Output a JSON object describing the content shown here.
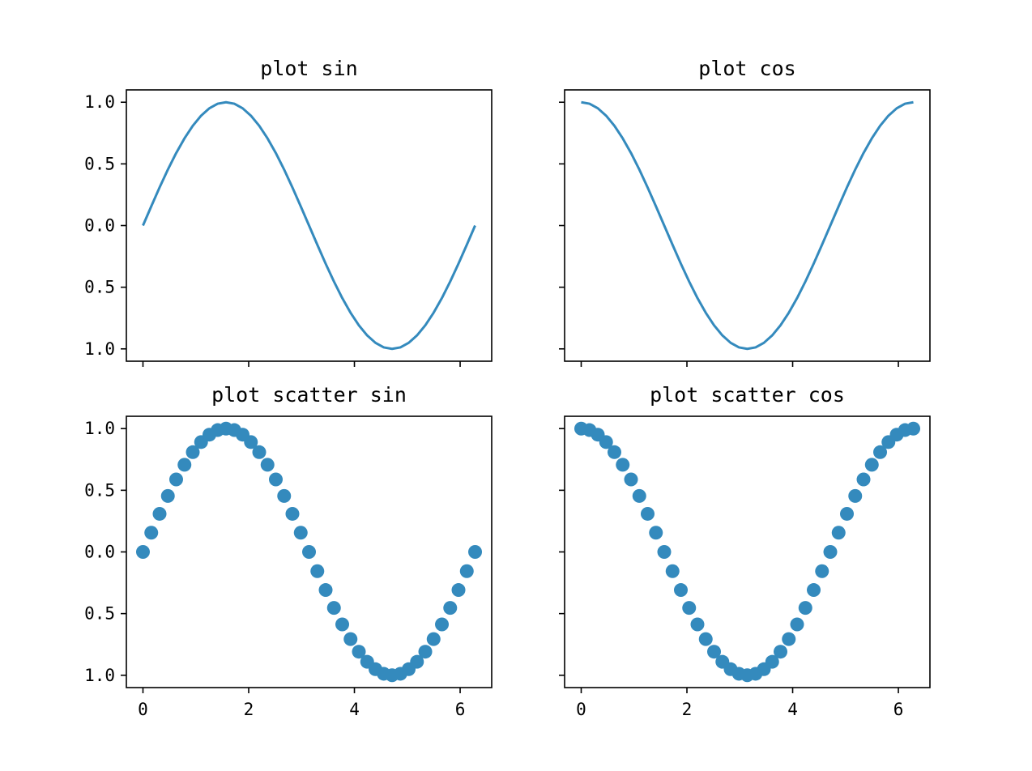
{
  "chart_data": [
    {
      "type": "line",
      "title": "plot sin",
      "xlabel": "",
      "ylabel": "",
      "x_range": [
        0,
        6.283
      ],
      "xlim": [
        -0.314,
        6.597
      ],
      "ylim": [
        -1.1,
        1.1
      ],
      "x_ticks": [
        0,
        2,
        4,
        6
      ],
      "x_tick_labels": [
        "",
        "",
        "",
        ""
      ],
      "y_ticks": [
        1.0,
        0.5,
        0.0,
        -0.5,
        -1.0
      ],
      "y_tick_labels": [
        "1.0",
        "0.5",
        "0.0",
        "0.5",
        "1.0"
      ],
      "grid": false,
      "series": [
        {
          "x": [
            0,
            0.1571,
            0.3142,
            0.4712,
            0.6283,
            0.7854,
            0.9425,
            1.0996,
            1.2566,
            1.4137,
            1.5708,
            1.7279,
            1.885,
            2.042,
            2.1991,
            2.3562,
            2.5133,
            2.6704,
            2.8274,
            2.9845,
            3.1416,
            3.2987,
            3.4558,
            3.6128,
            3.7699,
            3.927,
            4.0841,
            4.2412,
            4.3982,
            4.5553,
            4.7124,
            4.8695,
            5.0265,
            5.1836,
            5.3407,
            5.4978,
            5.6549,
            5.8119,
            5.969,
            6.1261,
            6.2832
          ],
          "y": [
            0,
            0.156,
            0.309,
            0.454,
            0.588,
            0.707,
            0.809,
            0.891,
            0.951,
            0.988,
            1.0,
            0.988,
            0.951,
            0.891,
            0.809,
            0.707,
            0.588,
            0.454,
            0.309,
            0.156,
            0,
            -0.156,
            -0.309,
            -0.454,
            -0.588,
            -0.707,
            -0.809,
            -0.891,
            -0.951,
            -0.988,
            -1.0,
            -0.988,
            -0.951,
            -0.891,
            -0.809,
            -0.707,
            -0.588,
            -0.454,
            -0.309,
            -0.156,
            0
          ],
          "color": "#348ABD"
        }
      ]
    },
    {
      "type": "line",
      "title": "plot cos",
      "xlabel": "",
      "ylabel": "",
      "x_range": [
        0,
        6.283
      ],
      "xlim": [
        -0.314,
        6.597
      ],
      "ylim": [
        -1.1,
        1.1
      ],
      "x_ticks": [
        0,
        2,
        4,
        6
      ],
      "x_tick_labels": [
        "",
        "",
        "",
        ""
      ],
      "y_ticks": [
        1.0,
        0.5,
        0.0,
        -0.5,
        -1.0
      ],
      "y_tick_labels": [
        "",
        "",
        "",
        "",
        ""
      ],
      "grid": false,
      "series": [
        {
          "x": [
            0,
            0.1571,
            0.3142,
            0.4712,
            0.6283,
            0.7854,
            0.9425,
            1.0996,
            1.2566,
            1.4137,
            1.5708,
            1.7279,
            1.885,
            2.042,
            2.1991,
            2.3562,
            2.5133,
            2.6704,
            2.8274,
            2.9845,
            3.1416,
            3.2987,
            3.4558,
            3.6128,
            3.7699,
            3.927,
            4.0841,
            4.2412,
            4.3982,
            4.5553,
            4.7124,
            4.8695,
            5.0265,
            5.1836,
            5.3407,
            5.4978,
            5.6549,
            5.8119,
            5.969,
            6.1261,
            6.2832
          ],
          "y": [
            1.0,
            0.988,
            0.951,
            0.891,
            0.809,
            0.707,
            0.588,
            0.454,
            0.309,
            0.156,
            0,
            -0.156,
            -0.309,
            -0.454,
            -0.588,
            -0.707,
            -0.809,
            -0.891,
            -0.951,
            -0.988,
            -1.0,
            -0.988,
            -0.951,
            -0.891,
            -0.809,
            -0.707,
            -0.588,
            -0.454,
            -0.309,
            -0.156,
            0,
            0.156,
            0.309,
            0.454,
            0.588,
            0.707,
            0.809,
            0.891,
            0.951,
            0.988,
            1.0
          ],
          "color": "#348ABD"
        }
      ]
    },
    {
      "type": "scatter",
      "title": "plot scatter sin",
      "xlabel": "",
      "ylabel": "",
      "xlim": [
        -0.314,
        6.597
      ],
      "ylim": [
        -1.1,
        1.1
      ],
      "x_ticks": [
        0,
        2,
        4,
        6
      ],
      "x_tick_labels": [
        "0",
        "2",
        "4",
        "6"
      ],
      "y_ticks": [
        1.0,
        0.5,
        0.0,
        -0.5,
        -1.0
      ],
      "y_tick_labels": [
        "1.0",
        "0.5",
        "0.0",
        "0.5",
        "1.0"
      ],
      "grid": false,
      "series": [
        {
          "x": [
            0,
            0.1571,
            0.3142,
            0.4712,
            0.6283,
            0.7854,
            0.9425,
            1.0996,
            1.2566,
            1.4137,
            1.5708,
            1.7279,
            1.885,
            2.042,
            2.1991,
            2.3562,
            2.5133,
            2.6704,
            2.8274,
            2.9845,
            3.1416,
            3.2987,
            3.4558,
            3.6128,
            3.7699,
            3.927,
            4.0841,
            4.2412,
            4.3982,
            4.5553,
            4.7124,
            4.8695,
            5.0265,
            5.1836,
            5.3407,
            5.4978,
            5.6549,
            5.8119,
            5.969,
            6.1261,
            6.2832
          ],
          "y": [
            0,
            0.156,
            0.309,
            0.454,
            0.588,
            0.707,
            0.809,
            0.891,
            0.951,
            0.988,
            1.0,
            0.988,
            0.951,
            0.891,
            0.809,
            0.707,
            0.588,
            0.454,
            0.309,
            0.156,
            0,
            -0.156,
            -0.309,
            -0.454,
            -0.588,
            -0.707,
            -0.809,
            -0.891,
            -0.951,
            -0.988,
            -1.0,
            -0.988,
            -0.951,
            -0.891,
            -0.809,
            -0.707,
            -0.588,
            -0.454,
            -0.309,
            -0.156,
            0
          ],
          "color": "#348ABD"
        }
      ]
    },
    {
      "type": "scatter",
      "title": "plot scatter cos",
      "xlabel": "",
      "ylabel": "",
      "xlim": [
        -0.314,
        6.597
      ],
      "ylim": [
        -1.1,
        1.1
      ],
      "x_ticks": [
        0,
        2,
        4,
        6
      ],
      "x_tick_labels": [
        "0",
        "2",
        "4",
        "6"
      ],
      "y_ticks": [
        1.0,
        0.5,
        0.0,
        -0.5,
        -1.0
      ],
      "y_tick_labels": [
        "",
        "",
        "",
        "",
        ""
      ],
      "grid": false,
      "series": [
        {
          "x": [
            0,
            0.1571,
            0.3142,
            0.4712,
            0.6283,
            0.7854,
            0.9425,
            1.0996,
            1.2566,
            1.4137,
            1.5708,
            1.7279,
            1.885,
            2.042,
            2.1991,
            2.3562,
            2.5133,
            2.6704,
            2.8274,
            2.9845,
            3.1416,
            3.2987,
            3.4558,
            3.6128,
            3.7699,
            3.927,
            4.0841,
            4.2412,
            4.3982,
            4.5553,
            4.7124,
            4.8695,
            5.0265,
            5.1836,
            5.3407,
            5.4978,
            5.6549,
            5.8119,
            5.969,
            6.1261,
            6.2832
          ],
          "y": [
            1.0,
            0.988,
            0.951,
            0.891,
            0.809,
            0.707,
            0.588,
            0.454,
            0.309,
            0.156,
            0,
            -0.156,
            -0.309,
            -0.454,
            -0.588,
            -0.707,
            -0.809,
            -0.891,
            -0.951,
            -0.988,
            -1.0,
            -0.988,
            -0.951,
            -0.891,
            -0.809,
            -0.707,
            -0.588,
            -0.454,
            -0.309,
            -0.156,
            0,
            0.156,
            0.309,
            0.454,
            0.588,
            0.707,
            0.809,
            0.891,
            0.951,
            0.988,
            1.0
          ],
          "color": "#348ABD"
        }
      ]
    }
  ]
}
